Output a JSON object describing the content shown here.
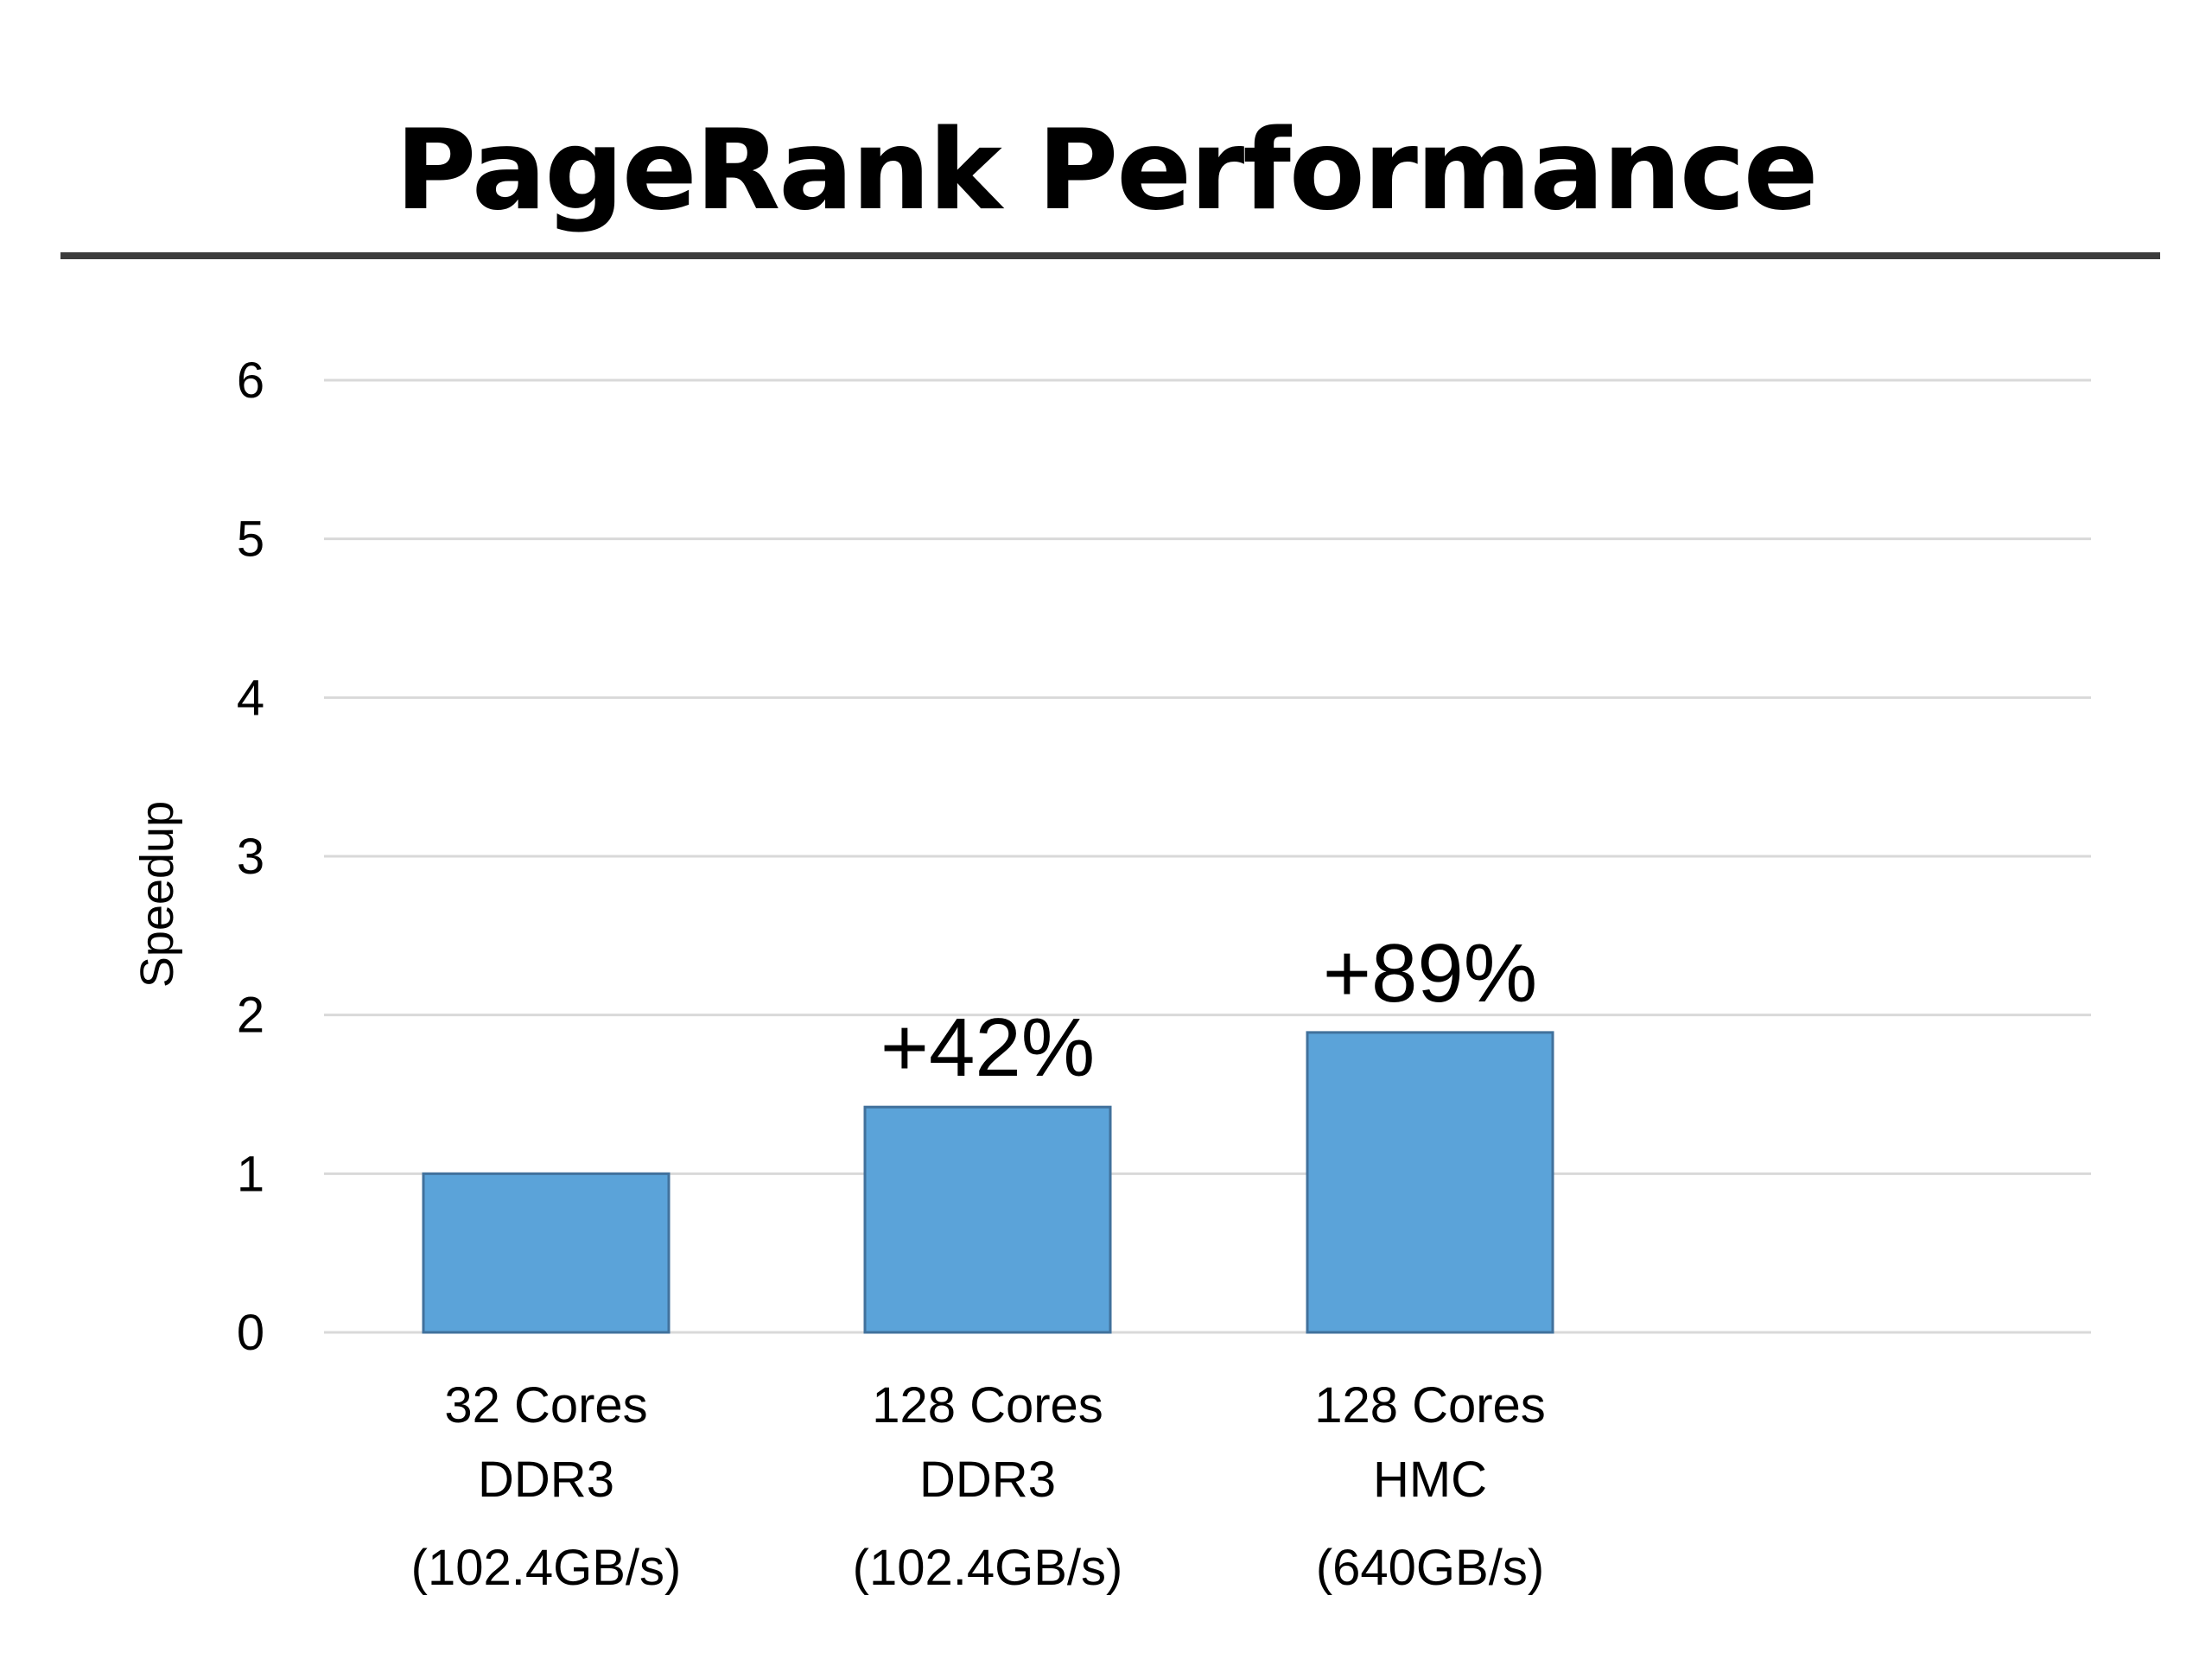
{
  "slide": {
    "title": "PageRank Performance"
  },
  "chart_data": {
    "type": "bar",
    "title": "",
    "xlabel": "",
    "ylabel": "Speedup",
    "ylim": [
      0,
      6
    ],
    "yticks": [
      0,
      1,
      2,
      3,
      4,
      5,
      6
    ],
    "grid": true,
    "legend": "none",
    "bar_color": "#5ba3d9",
    "categories": [
      [
        "32 Cores",
        "DDR3",
        "(102.4GB/s)"
      ],
      [
        "128 Cores",
        "DDR3",
        "(102.4GB/s)"
      ],
      [
        "128 Cores",
        "HMC",
        "(640GB/s)"
      ]
    ],
    "values": [
      1.0,
      1.42,
      1.89
    ],
    "data_labels": [
      "",
      "+42%",
      "+89%"
    ]
  }
}
